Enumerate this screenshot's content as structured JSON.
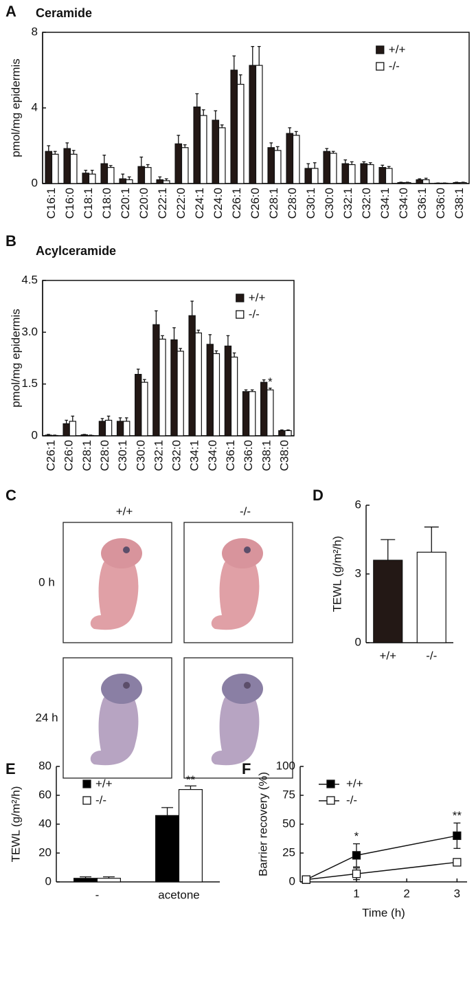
{
  "chart_data": [
    {
      "panel": "A",
      "type": "bar",
      "title": "Ceramide",
      "ylabel": "pmol/mg epidermis",
      "box": true,
      "legend": "upper right",
      "categories": [
        "C16:1",
        "C16:0",
        "C18:1",
        "C18:0",
        "C20:1",
        "C20:0",
        "C22:1",
        "C22:0",
        "C24:1",
        "C24:0",
        "C26:1",
        "C26:0",
        "C28:1",
        "C28:0",
        "C30:1",
        "C30:0",
        "C32:1",
        "C32:0",
        "C34:1",
        "C34:0",
        "C36:1",
        "C36:0",
        "C38:1"
      ],
      "series": [
        {
          "name": "+/+",
          "color": "#231815",
          "values": [
            1.7,
            1.85,
            0.55,
            1.05,
            0.25,
            0.9,
            0.2,
            2.1,
            4.05,
            3.35,
            6.0,
            6.25,
            1.9,
            2.65,
            0.8,
            1.7,
            1.05,
            1.05,
            0.85,
            0.05,
            0.2,
            0.02,
            0.05
          ],
          "errors": [
            0.3,
            0.3,
            0.15,
            0.45,
            0.25,
            0.5,
            0.15,
            0.45,
            0.7,
            0.5,
            0.75,
            1.0,
            0.25,
            0.3,
            0.25,
            0.15,
            0.2,
            0.1,
            0.12,
            0.02,
            0.05,
            0.01,
            0.02
          ]
        },
        {
          "name": "-/-",
          "color": "#ffffff",
          "values": [
            1.55,
            1.55,
            0.5,
            0.85,
            0.2,
            0.85,
            0.15,
            1.9,
            3.6,
            2.95,
            5.25,
            6.25,
            1.75,
            2.55,
            0.8,
            1.6,
            1.0,
            1.0,
            0.8,
            0.05,
            0.2,
            0.02,
            0.05
          ],
          "errors": [
            0.15,
            0.2,
            0.2,
            0.1,
            0.15,
            0.15,
            0.1,
            0.15,
            0.3,
            0.15,
            0.5,
            1.0,
            0.2,
            0.2,
            0.3,
            0.1,
            0.15,
            0.1,
            0.1,
            0.02,
            0.08,
            0.01,
            0.02
          ]
        }
      ],
      "ylim": [
        0,
        8
      ],
      "yticks": [
        0,
        4,
        8
      ]
    },
    {
      "panel": "B",
      "type": "bar",
      "title": "Acylceramide",
      "ylabel": "pmol/mg epidermis",
      "box": true,
      "legend": "upper right",
      "categories": [
        "C26:1",
        "C26:0",
        "C28:1",
        "C28:0",
        "C30:1",
        "C30:0",
        "C32:1",
        "C32:0",
        "C34:1",
        "C34:0",
        "C36:1",
        "C36:0",
        "C38:1",
        "C38:0"
      ],
      "series": [
        {
          "name": "+/+",
          "color": "#231815",
          "values": [
            0.02,
            0.35,
            0.03,
            0.42,
            0.42,
            1.78,
            3.22,
            2.78,
            3.48,
            2.65,
            2.6,
            1.28,
            1.55,
            0.15
          ],
          "errors": [
            0.02,
            0.1,
            0.01,
            0.08,
            0.1,
            0.15,
            0.4,
            0.35,
            0.42,
            0.28,
            0.3,
            0.05,
            0.07,
            0.02
          ]
        },
        {
          "name": "-/-",
          "color": "#ffffff",
          "values": [
            0.01,
            0.42,
            0.01,
            0.45,
            0.42,
            1.55,
            2.8,
            2.45,
            2.98,
            2.38,
            2.28,
            1.28,
            1.33,
            0.15
          ],
          "errors": [
            0.01,
            0.15,
            0.01,
            0.12,
            0.1,
            0.08,
            0.1,
            0.08,
            0.08,
            0.08,
            0.12,
            0.05,
            0.05,
            0.02
          ],
          "significance": [
            null,
            null,
            null,
            null,
            null,
            null,
            null,
            null,
            null,
            null,
            null,
            null,
            "*",
            null
          ]
        }
      ],
      "ylim": [
        0,
        4.5
      ],
      "yticks": [
        0,
        1.5,
        {
          "value": 3,
          "label": "3.0"
        },
        4.5
      ]
    },
    {
      "panel": "C",
      "type": "photo",
      "columns": [
        "+/+",
        "-/-"
      ],
      "rows": [
        "0 h",
        "24 h"
      ]
    },
    {
      "panel": "D",
      "type": "bar",
      "ylabel": "TEWL (g/m²/h)",
      "categories": [
        "+/+",
        "-/-"
      ],
      "values": [
        3.6,
        3.95
      ],
      "errors": [
        0.9,
        1.1
      ],
      "colors": [
        "#231815",
        "#ffffff"
      ],
      "ylim": [
        0,
        6
      ],
      "yticks": [
        0,
        3,
        6
      ]
    },
    {
      "panel": "E",
      "type": "bar",
      "ylabel": "TEWL (g/m²/h)",
      "legend": "upper left",
      "categories": [
        "-",
        "acetone"
      ],
      "series": [
        {
          "name": "+/+",
          "color": "#000000",
          "values": [
            2.5,
            46
          ],
          "errors": [
            1,
            5.5
          ]
        },
        {
          "name": "-/-",
          "color": "#ffffff",
          "values": [
            2.5,
            64
          ],
          "errors": [
            1,
            2.5
          ],
          "significance": [
            null,
            "**"
          ]
        }
      ],
      "ylim": [
        0,
        80
      ],
      "yticks": [
        0,
        20,
        40,
        60,
        80
      ]
    },
    {
      "panel": "F",
      "type": "line",
      "ylabel": "Barrier recovery (%)",
      "xlabel": "Time (h)",
      "legend": "upper left",
      "x": [
        0,
        1,
        3
      ],
      "series": [
        {
          "name": "+/+",
          "color": "#000000",
          "values": [
            2,
            23,
            40
          ],
          "errors": [
            0,
            10,
            11
          ],
          "significance": [
            null,
            "*",
            "**"
          ]
        },
        {
          "name": "-/-",
          "color": "#ffffff",
          "values": [
            2,
            7,
            17
          ],
          "errors": [
            0,
            5,
            2
          ]
        }
      ],
      "xlim": [
        -0.12,
        3.2
      ],
      "xticks": [
        1,
        2,
        3
      ],
      "ylim": [
        0,
        100
      ],
      "yticks": [
        0,
        25,
        50,
        75,
        100
      ]
    }
  ]
}
